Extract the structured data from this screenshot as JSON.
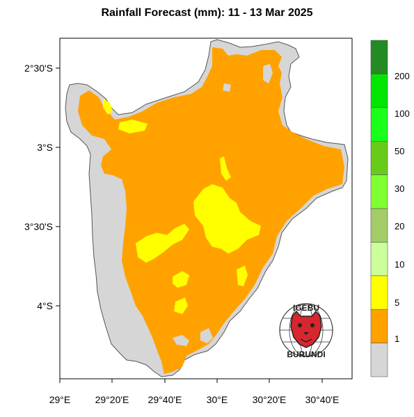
{
  "title": "Rainfall Forecast (mm): 11 - 13 Mar 2025",
  "map": {
    "lat_labels": [
      "2°30'S",
      "3°S",
      "3°30'S",
      "4°S"
    ],
    "lon_labels": [
      "29°E",
      "29°20'E",
      "29°40'E",
      "30°E",
      "30°20'E",
      "30°40'E"
    ],
    "colors": {
      "no_rain": "#d6d6d6",
      "range_1_5": "#ffa200",
      "range_5_10": "#ffff00",
      "border": "#555555"
    }
  },
  "legend": {
    "labels": [
      "1",
      "5",
      "10",
      "20",
      "30",
      "50",
      "100",
      "200"
    ],
    "colors": [
      "#d6d6d6",
      "#ffa200",
      "#ffff00",
      "#ccff99",
      "#a3cc66",
      "#80ff33",
      "#66cc1a",
      "#1aff1a",
      "#00e600",
      "#228b22"
    ]
  },
  "logo": {
    "top_text": "IGEBU",
    "bottom_text": "BURUNDI"
  }
}
